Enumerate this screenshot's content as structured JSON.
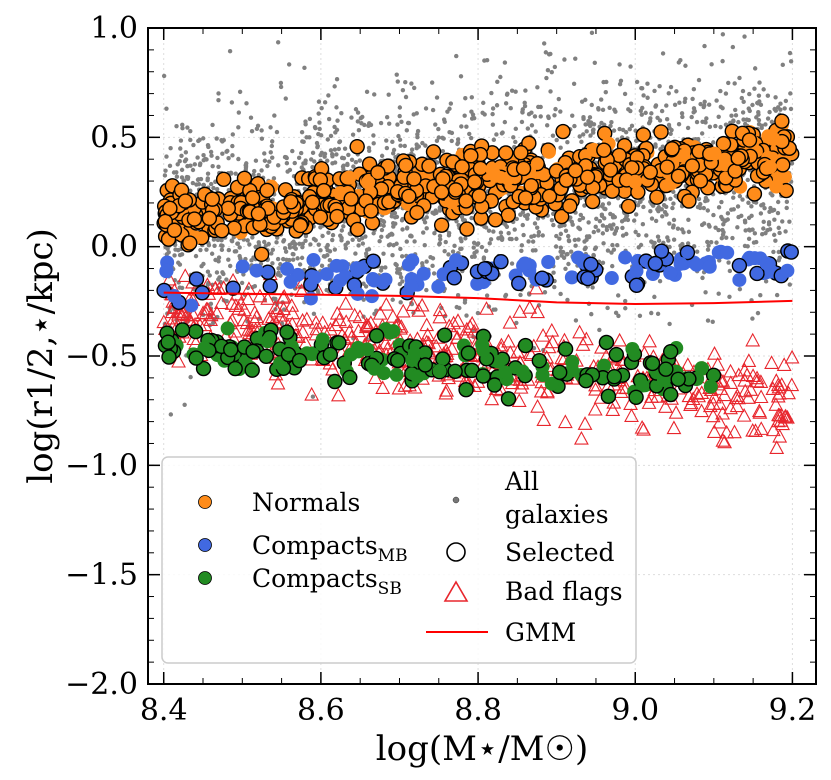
{
  "chart_data": {
    "type": "scatter",
    "title": "",
    "xlabel": "log(M⋆/M☉)",
    "ylabel": "log(r1/2,⋆/kpc)",
    "xlim": [
      8.38,
      9.23
    ],
    "ylim": [
      -2.0,
      1.0
    ],
    "xticks": [
      8.4,
      8.6,
      8.8,
      9.0,
      9.2
    ],
    "xtick_labels": [
      "8.4",
      "8.6",
      "8.8",
      "9.0",
      "9.2"
    ],
    "yticks": [
      -2.0,
      -1.5,
      -1.0,
      -0.5,
      0.0,
      0.5,
      1.0
    ],
    "ytick_labels": [
      "−2.0",
      "−1.5",
      "−1.0",
      "−0.5",
      "0.0",
      "0.5",
      "1.0"
    ],
    "grid": true,
    "legend_position": "bottom-left",
    "legend": {
      "left_column": [
        {
          "label": "Normals",
          "sub": "",
          "color": "#ff8c1a"
        },
        {
          "label": "Compacts",
          "sub": "MB",
          "color": "#4169e1"
        },
        {
          "label": "Compacts",
          "sub": "SB",
          "color": "#228b22"
        }
      ],
      "right_column": [
        {
          "label_lines": [
            "All",
            "galaxies"
          ],
          "marker": "small-dot"
        },
        {
          "label_lines": [
            "Selected"
          ],
          "marker": "open-circle"
        },
        {
          "label_lines": [
            "Bad flags"
          ],
          "marker": "open-triangle"
        },
        {
          "label_lines": [
            "GMM"
          ],
          "marker": "line"
        }
      ]
    },
    "colors": {
      "normals": "#ff8c1a",
      "compacts_mb": "#4169e1",
      "compacts_sb": "#228b22",
      "all_galaxies": "#808080",
      "bad_flags": "#e8262d",
      "gmm": "#ff0000"
    },
    "series": [
      {
        "name": "Normals",
        "trend": {
          "x": [
            8.4,
            9.2
          ],
          "y": [
            0.14,
            0.42
          ]
        },
        "scatter_sd": 0.07,
        "count": 750
      },
      {
        "name": "Compacts_MB",
        "trend": {
          "x": [
            8.4,
            9.2
          ],
          "y": [
            -0.17,
            -0.07
          ]
        },
        "scatter_sd": 0.04,
        "count": 130
      },
      {
        "name": "Compacts_SB",
        "trend": {
          "x": [
            8.4,
            9.1
          ],
          "y": [
            -0.46,
            -0.6
          ]
        },
        "scatter_sd": 0.06,
        "count": 200
      },
      {
        "name": "All galaxies",
        "trend": {
          "x": [
            8.4,
            9.2
          ],
          "y": [
            0.1,
            0.35
          ]
        },
        "scatter_sd": 0.25,
        "count": 2600
      },
      {
        "name": "Bad flags",
        "trend": {
          "x": [
            8.4,
            9.2
          ],
          "y": [
            -0.3,
            -0.72
          ]
        },
        "scatter_sd": 0.1,
        "count": 500
      }
    ],
    "gmm_curve": {
      "x": [
        8.4,
        8.5,
        8.6,
        8.7,
        8.8,
        8.9,
        9.0,
        9.1,
        9.2
      ],
      "y": [
        -0.21,
        -0.215,
        -0.22,
        -0.225,
        -0.235,
        -0.255,
        -0.262,
        -0.258,
        -0.248
      ]
    }
  }
}
